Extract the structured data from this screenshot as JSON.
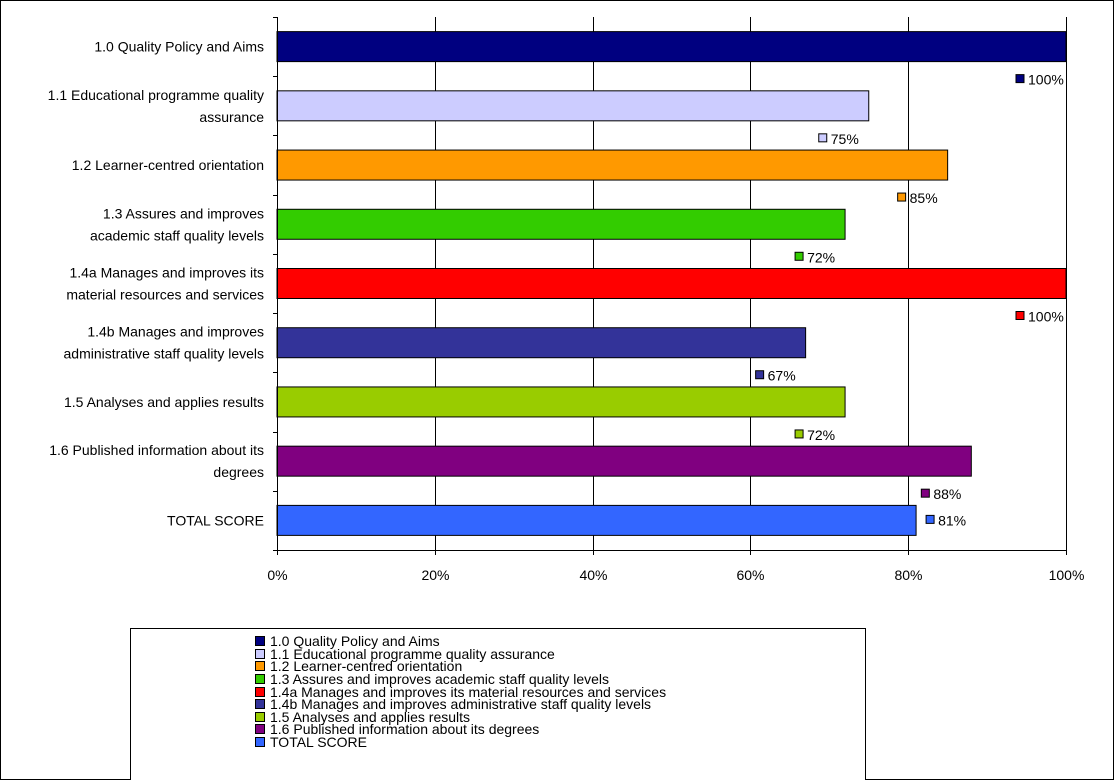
{
  "chart_data": {
    "type": "bar",
    "orientation": "horizontal",
    "categories": [
      "1.0 Quality Policy and Aims",
      "1.1 Educational programme quality assurance",
      "1.2 Learner-centred orientation",
      "1.3 Assures and improves academic staff quality levels",
      "1.4a Manages and improves its material resources and services",
      "1.4b Manages and improves administrative staff quality levels",
      "1.5 Analyses and applies results",
      "1.6 Published information about its degrees",
      "TOTAL SCORE"
    ],
    "axis_labels": [
      [
        "1.0 Quality Policy and Aims"
      ],
      [
        "1.1 Educational programme quality",
        "assurance"
      ],
      [
        "1.2 Learner-centred orientation"
      ],
      [
        "1.3 Assures and improves",
        "academic staff quality levels"
      ],
      [
        "1.4a Manages and improves its",
        "material resources and services"
      ],
      [
        "1.4b Manages and improves",
        "administrative staff quality levels"
      ],
      [
        "1.5 Analyses and applies results"
      ],
      [
        "1.6 Published information about its",
        "degrees"
      ],
      [
        "TOTAL SCORE"
      ]
    ],
    "values": [
      100,
      75,
      85,
      72,
      100,
      67,
      72,
      88,
      81
    ],
    "data_labels": [
      "100%",
      "75%",
      "85%",
      "72%",
      "100%",
      "67%",
      "72%",
      "88%",
      "81%"
    ],
    "colors": [
      "#000080",
      "#ccccff",
      "#ff9900",
      "#33cc00",
      "#ff0000",
      "#333399",
      "#99cc00",
      "#800080",
      "#3366ff"
    ],
    "xlim": [
      0,
      100
    ],
    "xticks": [
      0,
      20,
      40,
      60,
      80,
      100
    ],
    "xtick_labels": [
      "0%",
      "20%",
      "40%",
      "60%",
      "80%",
      "100%"
    ],
    "grid": true,
    "legend_position": "bottom",
    "title": "",
    "xlabel": "",
    "ylabel": ""
  }
}
